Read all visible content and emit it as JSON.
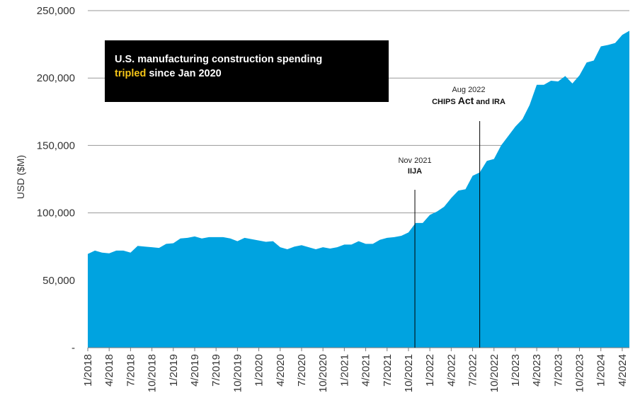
{
  "chart_data": {
    "type": "area",
    "title_line1": "U.S. manufacturing construction spending",
    "title_highlight": "tripled",
    "title_rest": "since Jan 2020",
    "ylabel": "USD ($M)",
    "ylim": [
      0,
      250000
    ],
    "yticks": [
      {
        "value": 0,
        "label": "-"
      },
      {
        "value": 50000,
        "label": "50,000"
      },
      {
        "value": 100000,
        "label": "100,000"
      },
      {
        "value": 150000,
        "label": "150,000"
      },
      {
        "value": 200000,
        "label": "200,000"
      },
      {
        "value": 250000,
        "label": "250,000"
      }
    ],
    "xticks": [
      {
        "index": 0,
        "label": "1/2018"
      },
      {
        "index": 3,
        "label": "4/2018"
      },
      {
        "index": 6,
        "label": "7/2018"
      },
      {
        "index": 9,
        "label": "10/2018"
      },
      {
        "index": 12,
        "label": "1/2019"
      },
      {
        "index": 15,
        "label": "4/2019"
      },
      {
        "index": 18,
        "label": "7/2019"
      },
      {
        "index": 21,
        "label": "10/2019"
      },
      {
        "index": 24,
        "label": "1/2020"
      },
      {
        "index": 27,
        "label": "4/2020"
      },
      {
        "index": 30,
        "label": "7/2020"
      },
      {
        "index": 33,
        "label": "10/2020"
      },
      {
        "index": 36,
        "label": "1/2021"
      },
      {
        "index": 39,
        "label": "4/2021"
      },
      {
        "index": 42,
        "label": "7/2021"
      },
      {
        "index": 45,
        "label": "10/2021"
      },
      {
        "index": 48,
        "label": "1/2022"
      },
      {
        "index": 51,
        "label": "4/2022"
      },
      {
        "index": 54,
        "label": "7/2022"
      },
      {
        "index": 57,
        "label": "10/2022"
      },
      {
        "index": 60,
        "label": "1/2023"
      },
      {
        "index": 63,
        "label": "4/2023"
      },
      {
        "index": 66,
        "label": "7/2023"
      },
      {
        "index": 69,
        "label": "10/2023"
      },
      {
        "index": 72,
        "label": "1/2024"
      },
      {
        "index": 75,
        "label": "4/2024"
      }
    ],
    "series": [
      {
        "name": "Manufacturing construction spending",
        "color": "#00a3e0",
        "values": [
          69500,
          72000,
          70500,
          70000,
          72000,
          72000,
          70500,
          75500,
          75000,
          74500,
          74000,
          77000,
          77500,
          81000,
          81500,
          82500,
          81000,
          82000,
          82000,
          82000,
          81000,
          79000,
          81500,
          80500,
          79500,
          78500,
          79000,
          74500,
          73000,
          75000,
          76000,
          74500,
          73000,
          74500,
          73500,
          74500,
          76500,
          76500,
          79000,
          77000,
          77000,
          80000,
          81500,
          82000,
          83000,
          85500,
          92500,
          92500,
          98500,
          101000,
          104500,
          111000,
          116500,
          117500,
          127500,
          130000,
          138500,
          140000,
          150000,
          157000,
          164000,
          169500,
          180000,
          195000,
          195000,
          198000,
          197500,
          201500,
          196000,
          202000,
          211500,
          213000,
          223500,
          224500,
          226000,
          232000,
          235000
        ]
      }
    ],
    "annotations": [
      {
        "index": 46,
        "date": "Nov 2021",
        "label": "IIJA"
      },
      {
        "index": 55,
        "date": "Aug 2022",
        "label_pre": "CHIPS",
        "label_big": "Act",
        "label_post": "and IRA"
      }
    ]
  }
}
